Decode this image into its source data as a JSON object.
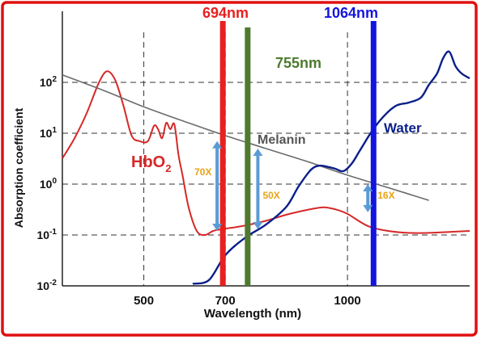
{
  "chart_data": {
    "type": "line",
    "xlabel": "Wavelength (nm)",
    "ylabel": "Absorption coefficient",
    "x_scale": "linear",
    "y_scale": "log",
    "xlim": [
      300,
      1300
    ],
    "ylim": [
      0.01,
      1000
    ],
    "x_ticks": [
      {
        "value": 500,
        "label": "500"
      },
      {
        "value": 700,
        "label": "700"
      },
      {
        "value": 1000,
        "label": "1000"
      }
    ],
    "y_ticks": [
      {
        "value": 100,
        "base": "10",
        "exp": "2"
      },
      {
        "value": 10,
        "base": "10",
        "exp": "1"
      },
      {
        "value": 1,
        "base": "10",
        "exp": "0"
      },
      {
        "value": 0.1,
        "base": "10",
        "exp": "-1"
      },
      {
        "value": 0.01,
        "base": "10",
        "exp": "-2"
      }
    ],
    "grid": true,
    "series": [
      {
        "name": "HbO",
        "name_sub": "2",
        "color": "#d62828",
        "x": [
          300,
          330,
          360,
          390,
          410,
          430,
          450,
          470,
          490,
          510,
          525,
          535,
          545,
          555,
          565,
          575,
          585,
          595,
          610,
          630,
          650,
          670,
          690,
          720,
          760,
          800,
          850,
          900,
          940,
          970,
          1000,
          1050,
          1100,
          1150,
          1200,
          1250,
          1300
        ],
        "y": [
          3.2,
          8,
          25,
          100,
          165,
          110,
          35,
          9,
          7,
          7,
          14,
          12,
          8,
          16,
          12,
          15,
          3.8,
          1.5,
          0.35,
          0.12,
          0.1,
          0.12,
          0.13,
          0.14,
          0.16,
          0.19,
          0.25,
          0.31,
          0.35,
          0.32,
          0.26,
          0.15,
          0.12,
          0.11,
          0.11,
          0.115,
          0.12
        ]
      },
      {
        "name": "Melanin",
        "color": "#6b6b6b",
        "x": [
          300,
          400,
          500,
          600,
          700,
          800,
          900,
          1000,
          1100,
          1200
        ],
        "y": [
          140,
          70,
          33,
          17,
          9,
          5,
          2.8,
          1.5,
          0.85,
          0.48
        ]
      },
      {
        "name": "Water",
        "color": "#0a1f8a",
        "x": [
          620,
          660,
          700,
          750,
          800,
          850,
          880,
          910,
          930,
          950,
          970,
          990,
          1010,
          1030,
          1060,
          1090,
          1120,
          1150,
          1180,
          1200,
          1220,
          1235,
          1250,
          1265,
          1280,
          1300
        ],
        "y": [
          0.011,
          0.013,
          0.04,
          0.09,
          0.16,
          0.36,
          0.9,
          1.9,
          2.3,
          2.2,
          2.0,
          1.8,
          2.5,
          4.5,
          11,
          22,
          35,
          40,
          50,
          90,
          150,
          300,
          400,
          210,
          150,
          120
        ]
      }
    ],
    "lasers": [
      {
        "label": "694nm",
        "x": 694,
        "color": "#e82020"
      },
      {
        "label": "755nm",
        "x": 755,
        "color": "#4e7a2e"
      },
      {
        "label": "1064nm",
        "x": 1064,
        "color": "#1414e0"
      }
    ],
    "ratio_arrows": [
      {
        "label": "70X",
        "x": 680,
        "y_top": 7,
        "y_bottom": 0.12
      },
      {
        "label": "50X",
        "x": 780,
        "y_top": 5,
        "y_bottom": 0.13
      },
      {
        "label": "16X",
        "x": 1050,
        "y_top": 1,
        "y_bottom": 0.28
      }
    ],
    "annotation_color": "#e8a317",
    "arrow_color": "#5b9bd5"
  }
}
